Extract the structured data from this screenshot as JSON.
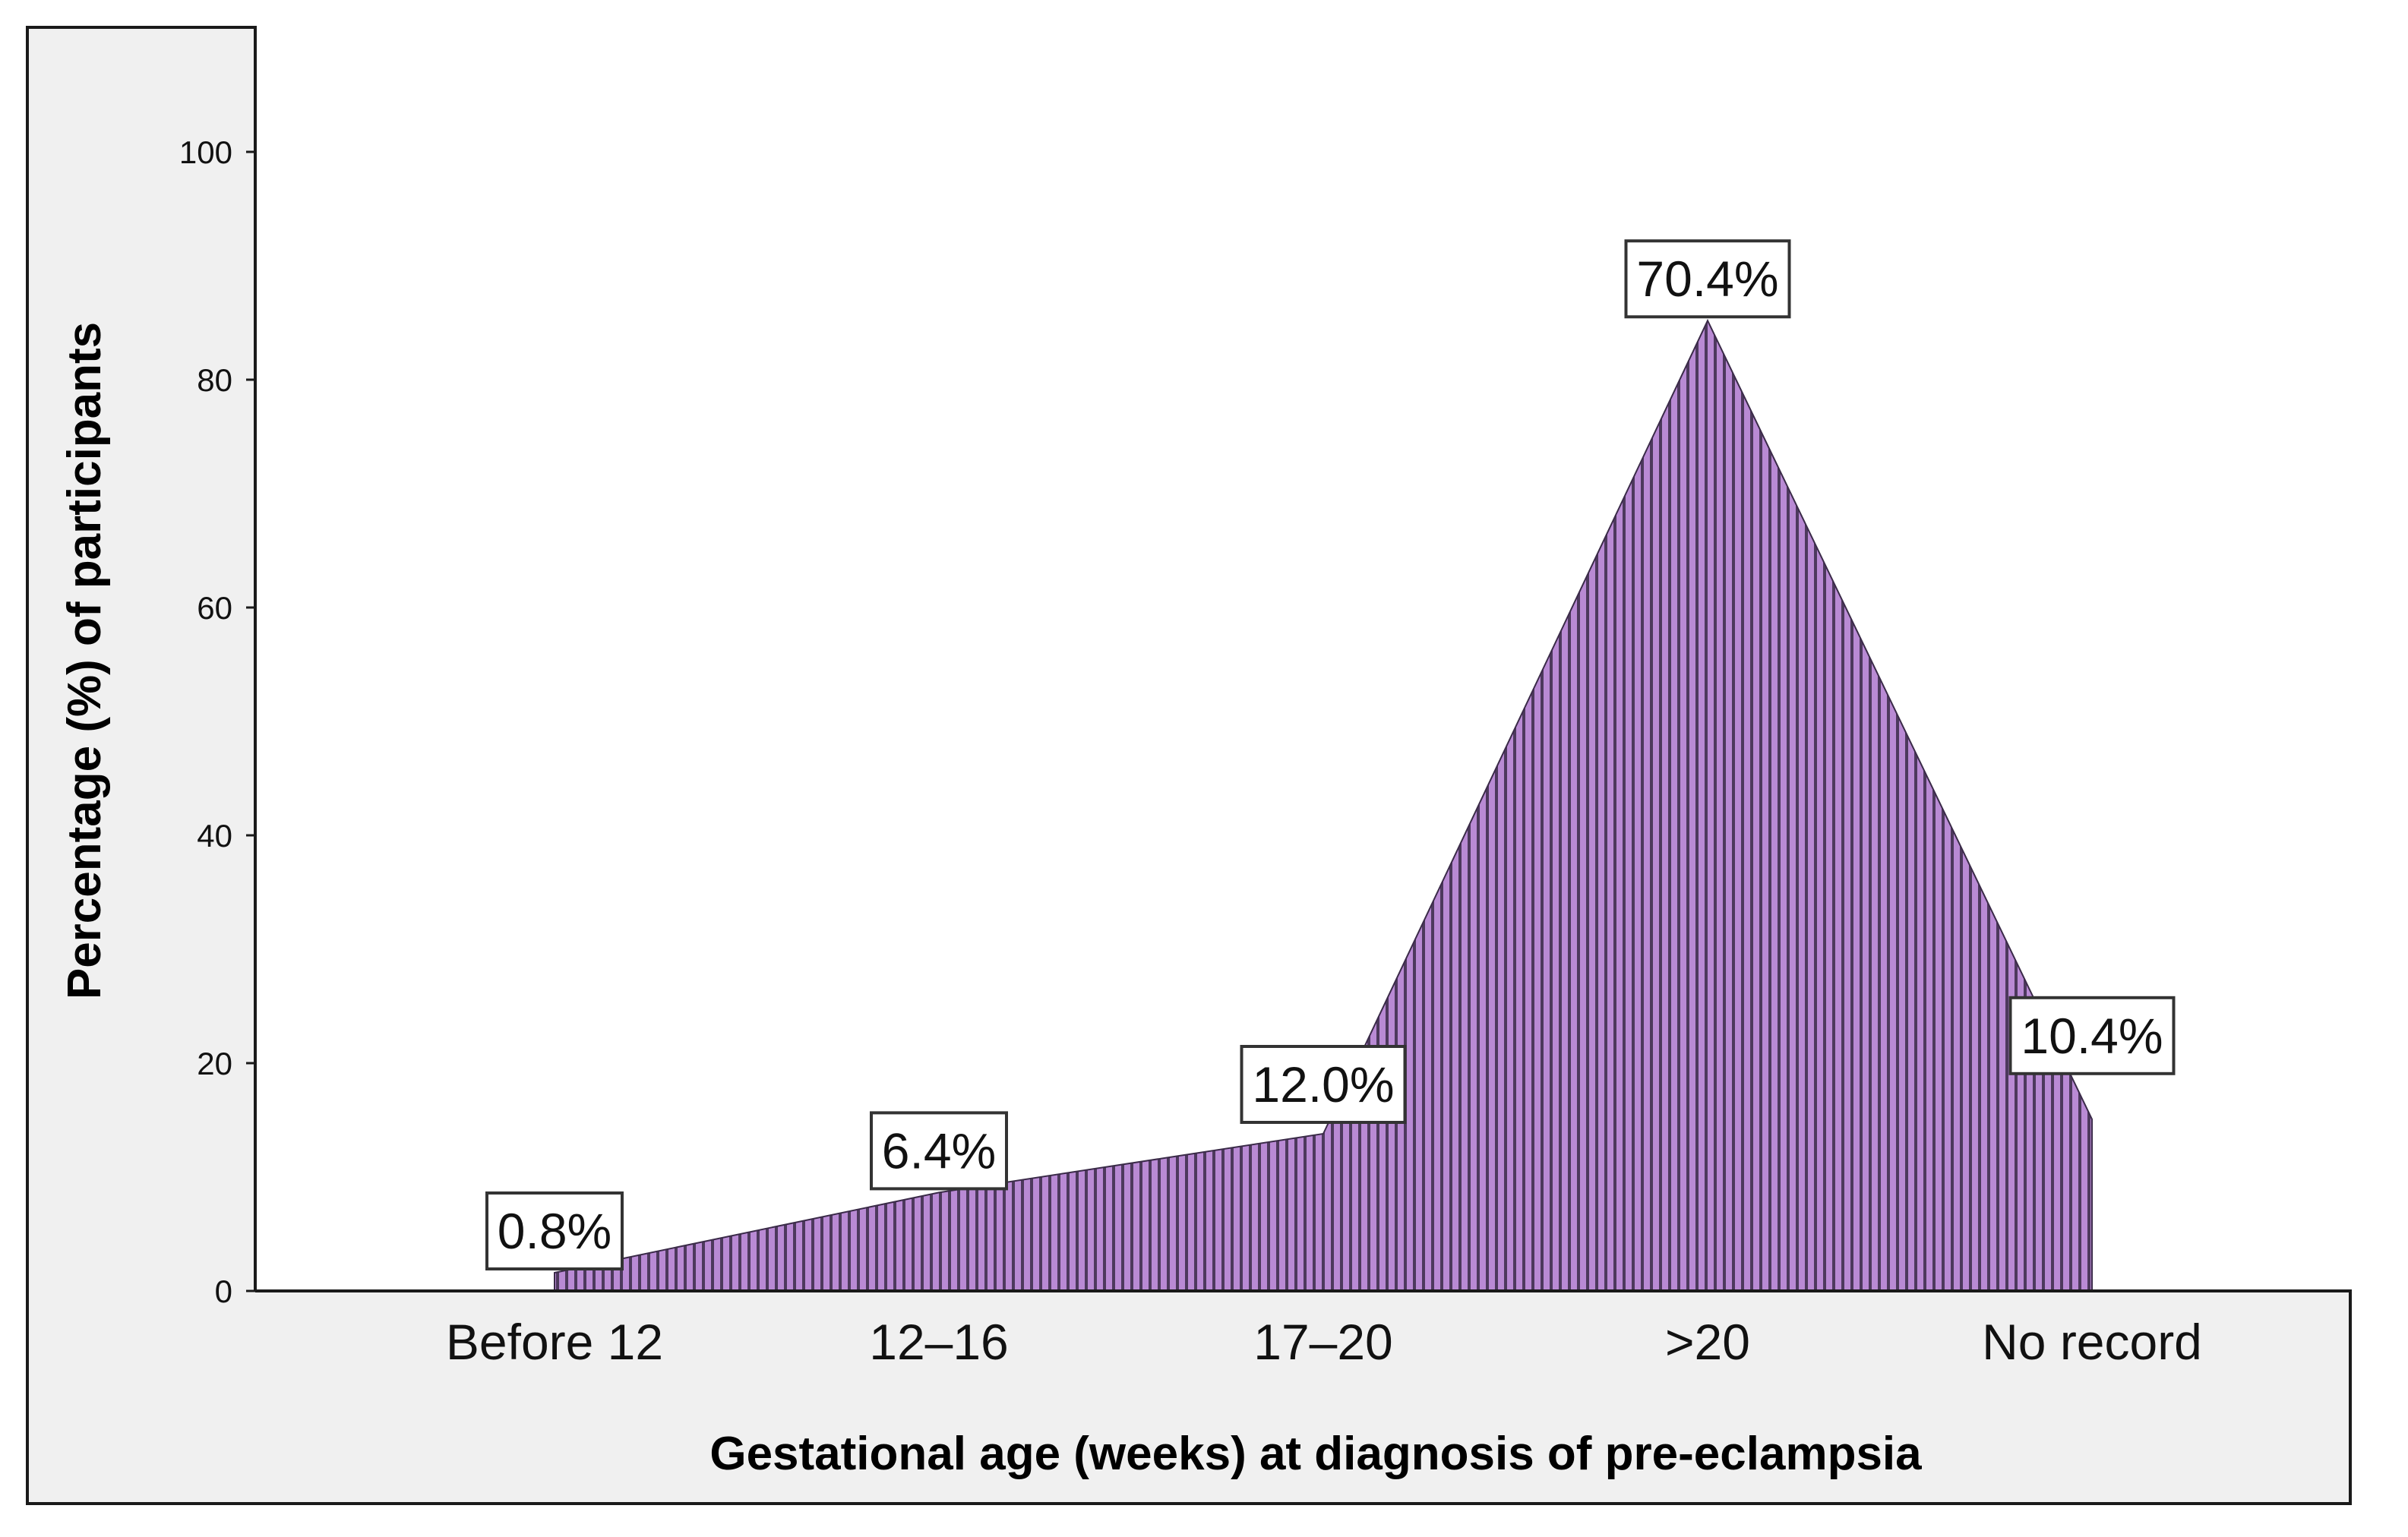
{
  "chart_data": {
    "type": "area",
    "categories": [
      "Before 12",
      "12–16",
      "17–20",
      ">20",
      "No record"
    ],
    "values": [
      0.8,
      6.4,
      12.0,
      70.4,
      10.4
    ],
    "data_labels": [
      "0.8%",
      "6.4%",
      "12.0%",
      "70.4%",
      "10.4%"
    ],
    "xlabel": "Gestational age (weeks) at diagnosis of pre-eclampsia",
    "ylabel": "Percentage (%) of participants",
    "ylim": [
      0,
      100
    ],
    "yticks": [
      "0",
      "20",
      "40",
      "60",
      "80",
      "100"
    ],
    "grid": false,
    "legend": "none",
    "colors": {
      "fill": "#b98ad4",
      "stripe": "#3a2a48",
      "plot_background": "#ffffff",
      "frame_background": "#f0f0f0"
    }
  }
}
